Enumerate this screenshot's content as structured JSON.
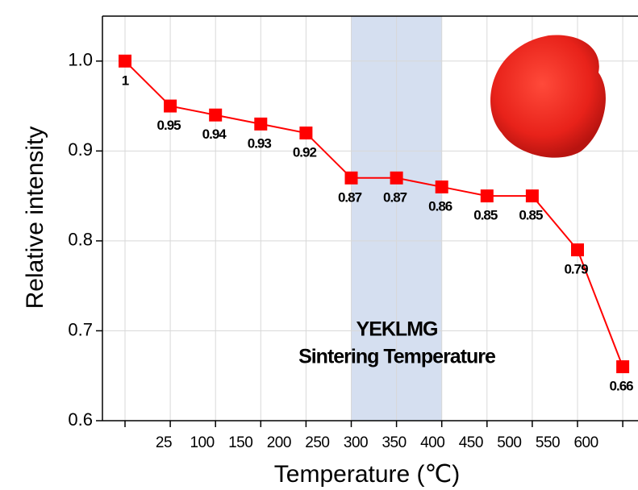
{
  "chart_data": {
    "type": "line",
    "xlabel": "Temperature (℃)",
    "ylabel": "Relative intensity",
    "categories": [
      "25",
      "100",
      "150",
      "200",
      "250",
      "300",
      "350",
      "400",
      "450",
      "500",
      "550",
      "600"
    ],
    "series": [
      {
        "color": "#ff0000",
        "values": [
          1,
          0.95,
          0.94,
          0.93,
          0.92,
          0.87,
          0.87,
          0.86,
          0.85,
          0.85,
          0.79,
          0.66
        ],
        "value_labels": [
          "1",
          "0.95",
          "0.94",
          "0.93",
          "0.92",
          "0.87",
          "0.87",
          "0.86",
          "0.85",
          "0.85",
          "0.79",
          "0.66"
        ]
      }
    ],
    "ylim": [
      0.6,
      1.05
    ],
    "yticks": [
      0.6,
      0.7,
      0.8,
      0.9,
      {
        "value": 1,
        "label": "1.0"
      }
    ],
    "grid": true,
    "highlight": {
      "from": 5,
      "to": 7,
      "color": "#d5dff0",
      "text": [
        "YEKLMG",
        "Sintering Temperature"
      ]
    }
  }
}
